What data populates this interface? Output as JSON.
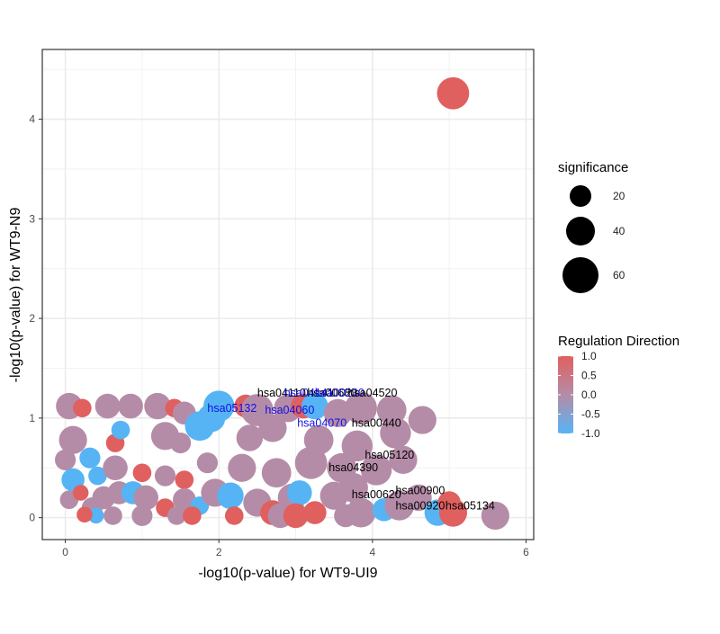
{
  "chart_data": {
    "type": "scatter",
    "title": "",
    "xlabel": "-log10(p-value) for WT9-UI9",
    "ylabel": "-log10(p-value) for WT9-N9",
    "xlim": [
      -0.3,
      6.1
    ],
    "ylim": [
      -0.22,
      4.7
    ],
    "x_ticks": [
      0,
      2,
      4,
      6
    ],
    "x_tick_labels": [
      "0",
      "2",
      "4",
      "6"
    ],
    "y_ticks": [
      0,
      1,
      2,
      3,
      4
    ],
    "y_tick_labels": [
      "0",
      "1",
      "2",
      "3",
      "4"
    ],
    "grid": true,
    "legend_position": "right",
    "colors": {
      "up": "#E06060",
      "neutral": "#B58CA8",
      "down": "#56B4F5",
      "label_black": "#000000",
      "label_blue": "#1010E0"
    },
    "legend": {
      "size_title": "significance",
      "size_entries": [
        {
          "label": "20",
          "value": 20
        },
        {
          "label": "40",
          "value": 40
        },
        {
          "label": "60",
          "value": 60
        }
      ],
      "color_title": "Regulation Direction",
      "color_entries": [
        "1.0",
        "0.5",
        "0.0",
        "-0.5",
        "-1.0"
      ]
    },
    "points": [
      {
        "x": 5.05,
        "y": 4.26,
        "s": 55,
        "dir": 1
      },
      {
        "x": 0.05,
        "y": 1.12,
        "s": 35,
        "dir": 0
      },
      {
        "x": 0.22,
        "y": 1.1,
        "s": 15,
        "dir": 1
      },
      {
        "x": 0.55,
        "y": 1.12,
        "s": 30,
        "dir": 0
      },
      {
        "x": 0.85,
        "y": 1.12,
        "s": 30,
        "dir": 0
      },
      {
        "x": 1.2,
        "y": 1.12,
        "s": 35,
        "dir": 0
      },
      {
        "x": 1.42,
        "y": 1.1,
        "s": 15,
        "dir": 1
      },
      {
        "x": 1.55,
        "y": 1.05,
        "s": 25,
        "dir": 0
      },
      {
        "x": 2.0,
        "y": 1.12,
        "s": 50,
        "dir": -1
      },
      {
        "x": 1.9,
        "y": 1.0,
        "s": 40,
        "dir": -1
      },
      {
        "x": 1.75,
        "y": 0.92,
        "s": 45,
        "dir": -1
      },
      {
        "x": 2.35,
        "y": 1.12,
        "s": 25,
        "dir": 1
      },
      {
        "x": 2.5,
        "y": 1.08,
        "s": 55,
        "dir": 0
      },
      {
        "x": 2.9,
        "y": 1.1,
        "s": 40,
        "dir": 0
      },
      {
        "x": 3.1,
        "y": 1.12,
        "s": 30,
        "dir": 1
      },
      {
        "x": 3.25,
        "y": 1.12,
        "s": 35,
        "dir": -1
      },
      {
        "x": 3.55,
        "y": 1.05,
        "s": 40,
        "dir": 0
      },
      {
        "x": 3.85,
        "y": 1.1,
        "s": 55,
        "dir": 0
      },
      {
        "x": 4.25,
        "y": 1.08,
        "s": 45,
        "dir": 0
      },
      {
        "x": 4.65,
        "y": 0.98,
        "s": 40,
        "dir": 0
      },
      {
        "x": 0.1,
        "y": 0.78,
        "s": 40,
        "dir": 0
      },
      {
        "x": 0.65,
        "y": 0.75,
        "s": 15,
        "dir": 1
      },
      {
        "x": 0.72,
        "y": 0.88,
        "s": 15,
        "dir": -1
      },
      {
        "x": 1.3,
        "y": 0.82,
        "s": 40,
        "dir": 0
      },
      {
        "x": 1.5,
        "y": 0.75,
        "s": 20,
        "dir": 0
      },
      {
        "x": 2.4,
        "y": 0.8,
        "s": 35,
        "dir": 0
      },
      {
        "x": 2.7,
        "y": 0.9,
        "s": 40,
        "dir": 0
      },
      {
        "x": 3.3,
        "y": 0.78,
        "s": 45,
        "dir": 0
      },
      {
        "x": 3.8,
        "y": 0.72,
        "s": 50,
        "dir": 0
      },
      {
        "x": 4.3,
        "y": 0.85,
        "s": 50,
        "dir": 0
      },
      {
        "x": 0.0,
        "y": 0.58,
        "s": 20,
        "dir": 0
      },
      {
        "x": 0.32,
        "y": 0.6,
        "s": 20,
        "dir": -1
      },
      {
        "x": 0.1,
        "y": 0.38,
        "s": 25,
        "dir": -1
      },
      {
        "x": 0.42,
        "y": 0.42,
        "s": 15,
        "dir": -1
      },
      {
        "x": 0.65,
        "y": 0.5,
        "s": 30,
        "dir": 0
      },
      {
        "x": 1.0,
        "y": 0.45,
        "s": 15,
        "dir": 1
      },
      {
        "x": 1.3,
        "y": 0.42,
        "s": 20,
        "dir": 0
      },
      {
        "x": 1.55,
        "y": 0.38,
        "s": 15,
        "dir": 1
      },
      {
        "x": 1.85,
        "y": 0.55,
        "s": 20,
        "dir": 0
      },
      {
        "x": 2.3,
        "y": 0.5,
        "s": 40,
        "dir": 0
      },
      {
        "x": 2.75,
        "y": 0.45,
        "s": 45,
        "dir": 0
      },
      {
        "x": 3.2,
        "y": 0.55,
        "s": 55,
        "dir": 0
      },
      {
        "x": 3.6,
        "y": 0.5,
        "s": 45,
        "dir": 0
      },
      {
        "x": 4.05,
        "y": 0.48,
        "s": 50,
        "dir": 0
      },
      {
        "x": 4.4,
        "y": 0.58,
        "s": 40,
        "dir": 0
      },
      {
        "x": 0.05,
        "y": 0.18,
        "s": 15,
        "dir": 0
      },
      {
        "x": 0.2,
        "y": 0.25,
        "s": 10,
        "dir": 1
      },
      {
        "x": 0.35,
        "y": 0.1,
        "s": 20,
        "dir": 0
      },
      {
        "x": 0.5,
        "y": 0.2,
        "s": 25,
        "dir": 0
      },
      {
        "x": 0.7,
        "y": 0.25,
        "s": 25,
        "dir": 0
      },
      {
        "x": 0.88,
        "y": 0.25,
        "s": 25,
        "dir": -1
      },
      {
        "x": 1.05,
        "y": 0.2,
        "s": 30,
        "dir": 0
      },
      {
        "x": 1.3,
        "y": 0.1,
        "s": 15,
        "dir": 1
      },
      {
        "x": 1.55,
        "y": 0.18,
        "s": 25,
        "dir": 0
      },
      {
        "x": 1.75,
        "y": 0.12,
        "s": 15,
        "dir": -1
      },
      {
        "x": 1.95,
        "y": 0.25,
        "s": 40,
        "dir": 0
      },
      {
        "x": 2.15,
        "y": 0.22,
        "s": 35,
        "dir": -1
      },
      {
        "x": 2.5,
        "y": 0.15,
        "s": 40,
        "dir": 0
      },
      {
        "x": 2.7,
        "y": 0.05,
        "s": 30,
        "dir": 1
      },
      {
        "x": 2.95,
        "y": 0.2,
        "s": 40,
        "dir": 0
      },
      {
        "x": 3.05,
        "y": 0.25,
        "s": 30,
        "dir": -1
      },
      {
        "x": 3.25,
        "y": 0.05,
        "s": 25,
        "dir": 1
      },
      {
        "x": 3.5,
        "y": 0.22,
        "s": 40,
        "dir": 0
      },
      {
        "x": 3.75,
        "y": 0.3,
        "s": 45,
        "dir": 0
      },
      {
        "x": 3.85,
        "y": 0.05,
        "s": 45,
        "dir": 0
      },
      {
        "x": 4.15,
        "y": 0.08,
        "s": 25,
        "dir": -1
      },
      {
        "x": 4.35,
        "y": 0.12,
        "s": 45,
        "dir": 0
      },
      {
        "x": 4.6,
        "y": 0.2,
        "s": 35,
        "dir": 0
      },
      {
        "x": 4.85,
        "y": 0.05,
        "s": 35,
        "dir": -1
      },
      {
        "x": 5.05,
        "y": 0.05,
        "s": 40,
        "dir": 1
      },
      {
        "x": 5.0,
        "y": 0.15,
        "s": 25,
        "dir": 1
      },
      {
        "x": 5.6,
        "y": 0.02,
        "s": 40,
        "dir": 0
      },
      {
        "x": 0.4,
        "y": 0.02,
        "s": 10,
        "dir": -1
      },
      {
        "x": 0.62,
        "y": 0.02,
        "s": 15,
        "dir": 0
      },
      {
        "x": 0.25,
        "y": 0.03,
        "s": 10,
        "dir": 1
      },
      {
        "x": 1.0,
        "y": 0.02,
        "s": 20,
        "dir": 0
      },
      {
        "x": 1.45,
        "y": 0.02,
        "s": 15,
        "dir": 0
      },
      {
        "x": 1.65,
        "y": 0.02,
        "s": 15,
        "dir": 1
      },
      {
        "x": 2.2,
        "y": 0.02,
        "s": 15,
        "dir": 1
      },
      {
        "x": 2.8,
        "y": 0.02,
        "s": 30,
        "dir": 0
      },
      {
        "x": 3.0,
        "y": 0.02,
        "s": 30,
        "dir": 1
      },
      {
        "x": 3.65,
        "y": 0.02,
        "s": 25,
        "dir": 0
      }
    ],
    "annotations": [
      {
        "text": "hsa04110",
        "x": 2.5,
        "y": 1.25,
        "color": "black"
      },
      {
        "text": "hsa04141",
        "x": 2.85,
        "y": 1.25,
        "color": "blue"
      },
      {
        "text": "hsa00680",
        "x": 3.15,
        "y": 1.25,
        "color": "black"
      },
      {
        "text": "hsa00230",
        "x": 3.25,
        "y": 1.25,
        "color": "blue"
      },
      {
        "text": "hsa04520",
        "x": 3.68,
        "y": 1.25,
        "color": "black"
      },
      {
        "text": "hsa05132",
        "x": 1.85,
        "y": 1.1,
        "color": "blue"
      },
      {
        "text": "hsa04060",
        "x": 2.6,
        "y": 1.08,
        "color": "blue"
      },
      {
        "text": "hsa04070",
        "x": 3.02,
        "y": 0.95,
        "color": "blue"
      },
      {
        "text": "hsa00440",
        "x": 3.73,
        "y": 0.95,
        "color": "black"
      },
      {
        "text": "hsa05120",
        "x": 3.9,
        "y": 0.63,
        "color": "black"
      },
      {
        "text": "hsa04390",
        "x": 3.43,
        "y": 0.5,
        "color": "black"
      },
      {
        "text": "hsa00900",
        "x": 4.3,
        "y": 0.27,
        "color": "black"
      },
      {
        "text": "hsa00620",
        "x": 3.73,
        "y": 0.23,
        "color": "black"
      },
      {
        "text": "hsa00920",
        "x": 4.3,
        "y": 0.12,
        "color": "black"
      },
      {
        "text": "hsa05134",
        "x": 4.95,
        "y": 0.12,
        "color": "black"
      }
    ]
  }
}
